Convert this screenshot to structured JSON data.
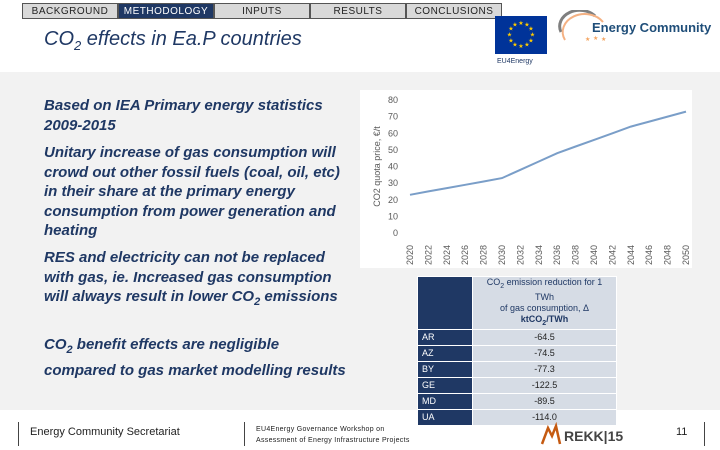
{
  "nav": {
    "tabs": [
      {
        "label": "BACKGROUND",
        "active": false
      },
      {
        "label": "METHODOLOGY",
        "active": true
      },
      {
        "label": "INPUTS",
        "active": false
      },
      {
        "label": "RESULTS",
        "active": false
      },
      {
        "label": "CONCLUSIONS",
        "active": false
      }
    ]
  },
  "title": {
    "prefix": "CO",
    "sub": "2",
    "suffix": " effects in Ea.P countries"
  },
  "logos": {
    "eu_label": "EU4Energy",
    "ec_name": "Energy Community"
  },
  "paragraphs": {
    "p1": "Based on IEA Primary energy statistics 2009-2015",
    "p2": "Unitary increase of gas consumption will crowd out other fossil fuels (coal, oil, etc) in their share at the primary energy consumption from power generation and heating",
    "p3_main": "RES and electricity can not be replaced with gas, ie. Increased gas consumption will always result in lower CO",
    "p3_sub": "2",
    "p3_end": " emissions",
    "p4_start": "CO",
    "p4_sub": "2",
    "p4_main": " benefit effects are negligible compared to gas market modelling results"
  },
  "chart_data": {
    "type": "line",
    "ylabel": "CO2 quota price, €/t",
    "xlabel": "",
    "title": "",
    "ylim": [
      0,
      80
    ],
    "yticks": [
      0,
      10,
      20,
      30,
      40,
      50,
      60,
      70,
      80
    ],
    "x": [
      "2020",
      "2022",
      "2024",
      "2026",
      "2028",
      "2030",
      "2032",
      "2034",
      "2036",
      "2038",
      "2040",
      "2042",
      "2044",
      "2046",
      "2048",
      "2050"
    ],
    "values": [
      23,
      25,
      27,
      29,
      31,
      33,
      38,
      43,
      48,
      52,
      56,
      60,
      64,
      67,
      70,
      73
    ],
    "line_color": "#7a9ec8",
    "grid": false
  },
  "table": {
    "header_line1_prefix": "CO",
    "header_line1_sub": "2",
    "header_line1_suffix": " emission reduction for 1 TWh",
    "header_line2": "of gas consumption, Δ",
    "header_line3": "ktCO",
    "header_line3_sub": "2",
    "header_line3_suffix": "/TWh",
    "rows": [
      {
        "country": "AR",
        "value": "-64.5"
      },
      {
        "country": "AZ",
        "value": "-74.5"
      },
      {
        "country": "BY",
        "value": "-77.3"
      },
      {
        "country": "GE",
        "value": "-122.5"
      },
      {
        "country": "MD",
        "value": "-89.5"
      },
      {
        "country": "UA",
        "value": "-114.0"
      }
    ]
  },
  "footer": {
    "left": "Energy Community Secretariat",
    "mid_line1": "EU4Energy Governance Workshop on",
    "mid_line2": "Assessment of Energy Infrastructure Projects",
    "rekk": "REKK|15",
    "slide_number": "11"
  },
  "colors": {
    "navy": "#1f3864",
    "band": "#f2f2f2",
    "table_light": "#d6dce5",
    "line": "#7a9ec8"
  }
}
